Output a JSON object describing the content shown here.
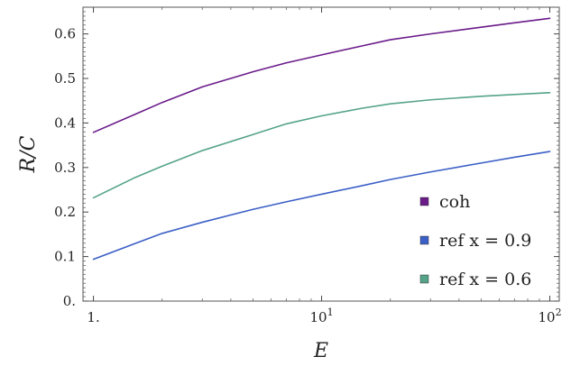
{
  "chart_data": {
    "type": "line",
    "title": "",
    "xlabel": "E",
    "ylabel": "R/C",
    "xscale": "log",
    "xlim": [
      0.9,
      110
    ],
    "ylim": [
      0,
      0.66
    ],
    "xticks": [
      {
        "value": 1,
        "label": "1."
      },
      {
        "value": 10,
        "label": "10",
        "sup": "1"
      },
      {
        "value": 100,
        "label": "10",
        "sup": "2"
      }
    ],
    "yticks": [
      {
        "value": 0,
        "label": "0."
      },
      {
        "value": 0.1,
        "label": "0.1"
      },
      {
        "value": 0.2,
        "label": "0.2"
      },
      {
        "value": 0.3,
        "label": "0.3"
      },
      {
        "value": 0.4,
        "label": "0.4"
      },
      {
        "value": 0.5,
        "label": "0.5"
      },
      {
        "value": 0.6,
        "label": "0.6"
      }
    ],
    "grid": false,
    "legend_position": "bottom-right",
    "series": [
      {
        "name": "coh",
        "color": "#6a1b8a",
        "x": [
          1,
          1.5,
          2,
          3,
          5,
          7,
          10,
          15,
          20,
          30,
          50,
          70,
          100
        ],
        "y": [
          0.379,
          0.418,
          0.446,
          0.481,
          0.515,
          0.535,
          0.553,
          0.573,
          0.587,
          0.6,
          0.615,
          0.625,
          0.635
        ]
      },
      {
        "name": "ref x = 0.9",
        "color": "#3b5fc6",
        "x": [
          1,
          1.5,
          2,
          3,
          5,
          7,
          10,
          15,
          20,
          30,
          50,
          70,
          100
        ],
        "y": [
          0.094,
          0.128,
          0.152,
          0.177,
          0.206,
          0.223,
          0.24,
          0.259,
          0.273,
          0.29,
          0.31,
          0.323,
          0.336
        ]
      },
      {
        "name": "ref x = 0.6",
        "color": "#55a38a",
        "x": [
          1,
          1.5,
          2,
          3,
          5,
          7,
          10,
          15,
          20,
          30,
          50,
          70,
          100
        ],
        "y": [
          0.232,
          0.276,
          0.303,
          0.338,
          0.374,
          0.398,
          0.416,
          0.433,
          0.443,
          0.452,
          0.46,
          0.464,
          0.468
        ]
      }
    ]
  }
}
